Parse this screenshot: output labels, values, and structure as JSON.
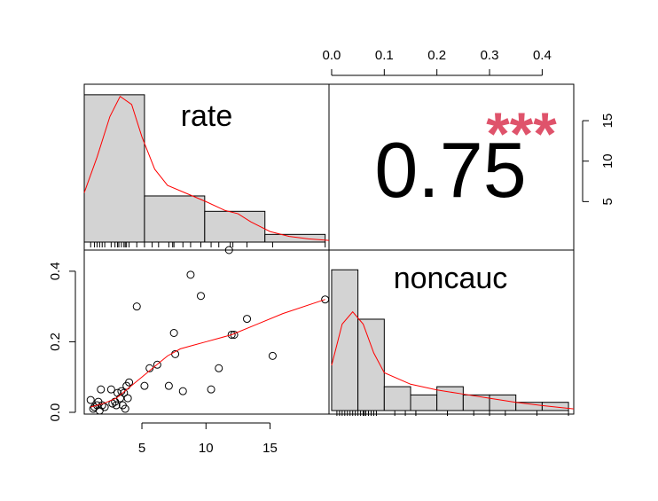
{
  "chart_data": {
    "type": "scatter-matrix",
    "variables": [
      "rate",
      "noncauc"
    ],
    "colors": {
      "smooth": "#ff0000",
      "bar_fill": "#d3d3d3",
      "stars": "#df536b",
      "frame": "#000000"
    },
    "correlation": {
      "value": "0.75",
      "stars": "***"
    },
    "rate_axis": {
      "range": [
        0.5,
        19.6
      ],
      "ticks": [
        "5",
        "10",
        "15"
      ],
      "tick_values": [
        5,
        10,
        15
      ]
    },
    "noncauc_axis": {
      "range": [
        -0.005,
        0.46
      ],
      "ticks": [
        "0.0",
        "0.1",
        "0.2",
        "0.3",
        "0.4"
      ],
      "tick_values": [
        0,
        0.1,
        0.2,
        0.3,
        0.4
      ]
    },
    "left_axis_ticks": {
      "labels": [
        "0.0",
        "0.2",
        "0.4"
      ],
      "values": [
        0,
        0.2,
        0.4
      ]
    },
    "right_axis_ticks": {
      "labels": [
        "5",
        "10",
        "15"
      ],
      "values": [
        5,
        10,
        15
      ],
      "range": [
        0,
        19.5
      ]
    },
    "rate_hist": {
      "edges": [
        0.5,
        5.2,
        9.9,
        14.6,
        19.3
      ],
      "heights": [
        18.2,
        5.7,
        3.8,
        0.95
      ],
      "density_curve": [
        [
          0.5,
          6.1
        ],
        [
          1.5,
          10.5
        ],
        [
          2.5,
          15.5
        ],
        [
          3.3,
          18.0
        ],
        [
          4.2,
          17.0
        ],
        [
          5.0,
          13.0
        ],
        [
          6.0,
          9.0
        ],
        [
          7.0,
          7.0
        ],
        [
          8.5,
          6.0
        ],
        [
          10.0,
          5.0
        ],
        [
          11.5,
          3.9
        ],
        [
          12.5,
          3.5
        ],
        [
          13.5,
          2.5
        ],
        [
          15.0,
          1.3
        ],
        [
          16.5,
          0.7
        ],
        [
          18.0,
          0.4
        ],
        [
          19.6,
          0.2
        ]
      ],
      "rug": [
        1.0,
        1.3,
        1.5,
        1.7,
        1.9,
        2.1,
        2.6,
        2.9,
        3.1,
        3.2,
        3.4,
        3.6,
        3.7,
        3.8,
        4.0,
        4.6,
        5.2,
        5.8,
        6.3,
        7.1,
        7.4,
        7.5,
        8.2,
        8.8,
        9.6,
        10.4,
        11.0,
        11.9,
        12.1,
        13.2,
        15.2,
        19.3
      ]
    },
    "noncauc_hist": {
      "edges": [
        0.0,
        0.05,
        0.1,
        0.15,
        0.2,
        0.25,
        0.3,
        0.35,
        0.4,
        0.45
      ],
      "heights": [
        17.1,
        11.1,
        2.9,
        1.9,
        2.9,
        1.9,
        1.9,
        1.0,
        0.0
      ],
      "extra_bar": {
        "x0": 0.4,
        "x1": 0.45,
        "height": 1.0
      },
      "density_curve": [
        [
          0.0,
          5.5
        ],
        [
          0.02,
          10.5
        ],
        [
          0.04,
          12.0
        ],
        [
          0.06,
          10.5
        ],
        [
          0.08,
          7.0
        ],
        [
          0.1,
          4.6
        ],
        [
          0.15,
          3.2
        ],
        [
          0.2,
          2.5
        ],
        [
          0.25,
          2.0
        ],
        [
          0.3,
          1.5
        ],
        [
          0.35,
          1.0
        ],
        [
          0.4,
          0.6
        ],
        [
          0.46,
          0.2
        ]
      ],
      "rug": [
        0.01,
        0.015,
        0.02,
        0.025,
        0.03,
        0.035,
        0.04,
        0.045,
        0.05,
        0.055,
        0.06,
        0.062,
        0.065,
        0.07,
        0.075,
        0.08,
        0.085,
        0.12,
        0.14,
        0.16,
        0.16,
        0.22,
        0.22,
        0.27,
        0.3,
        0.33,
        0.39,
        0.45
      ]
    },
    "scatter": {
      "x": [
        1.0,
        1.2,
        1.3,
        1.5,
        1.6,
        1.7,
        1.8,
        1.9,
        2.1,
        2.6,
        2.7,
        2.9,
        3.0,
        3.1,
        3.3,
        3.4,
        3.5,
        3.6,
        3.7,
        3.8,
        3.9,
        4.0,
        4.6,
        5.2,
        5.6,
        6.2,
        7.1,
        7.5,
        7.6,
        8.2,
        8.8,
        9.6,
        10.4,
        11.0,
        11.8,
        12.0,
        12.2,
        13.2,
        15.2,
        19.3
      ],
      "y": [
        0.035,
        0.01,
        0.015,
        0.02,
        0.03,
        0.005,
        0.065,
        0.02,
        0.015,
        0.065,
        0.025,
        0.03,
        0.02,
        0.055,
        0.04,
        0.06,
        0.02,
        0.055,
        0.01,
        0.075,
        0.04,
        0.085,
        0.3,
        0.075,
        0.125,
        0.135,
        0.075,
        0.225,
        0.165,
        0.06,
        0.39,
        0.33,
        0.065,
        0.125,
        0.46,
        0.22,
        0.22,
        0.265,
        0.16,
        0.32
      ],
      "smooth": [
        [
          1.0,
          0.015
        ],
        [
          2.0,
          0.025
        ],
        [
          3.0,
          0.04
        ],
        [
          4.0,
          0.07
        ],
        [
          5.0,
          0.1
        ],
        [
          6.0,
          0.13
        ],
        [
          7.0,
          0.16
        ],
        [
          8.0,
          0.18
        ],
        [
          9.0,
          0.19
        ],
        [
          10.0,
          0.2
        ],
        [
          11.0,
          0.21
        ],
        [
          12.0,
          0.22
        ],
        [
          14.0,
          0.25
        ],
        [
          16.0,
          0.28
        ],
        [
          19.3,
          0.32
        ]
      ]
    }
  }
}
